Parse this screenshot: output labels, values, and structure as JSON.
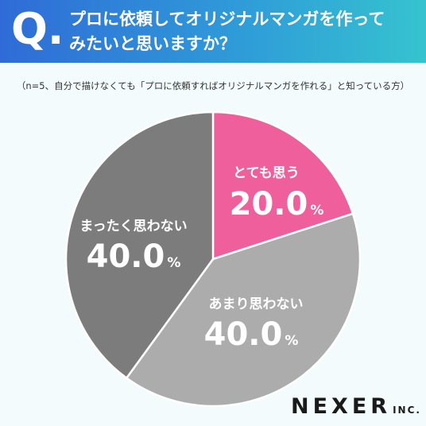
{
  "header": {
    "q_mark": "Q.",
    "question_line1": "プロに依頼してオリジナルマンガを作って",
    "question_line2": "みたいと思いますか？"
  },
  "note": "（n=5、自分で描けなくても「プロに依頼すればオリジナルマンガを作れる」と知っている方）",
  "chart_data": {
    "type": "pie",
    "unit": "%",
    "slices": [
      {
        "label": "とても思う",
        "value": 20.0,
        "display": "20.0",
        "color": "#ef5f9c"
      },
      {
        "label": "あまり思わない",
        "value": 40.0,
        "display": "40.0",
        "color": "#acacac"
      },
      {
        "label": "まったく思わない",
        "value": 40.0,
        "display": "40.0",
        "color": "#7c7c7c"
      }
    ]
  },
  "logo": {
    "main": "NEXER",
    "suffix": "INC."
  },
  "colors": {
    "background": "#f3fbfd",
    "banner_start": "#2f6bd7",
    "banner_end": "#36c3cf"
  }
}
